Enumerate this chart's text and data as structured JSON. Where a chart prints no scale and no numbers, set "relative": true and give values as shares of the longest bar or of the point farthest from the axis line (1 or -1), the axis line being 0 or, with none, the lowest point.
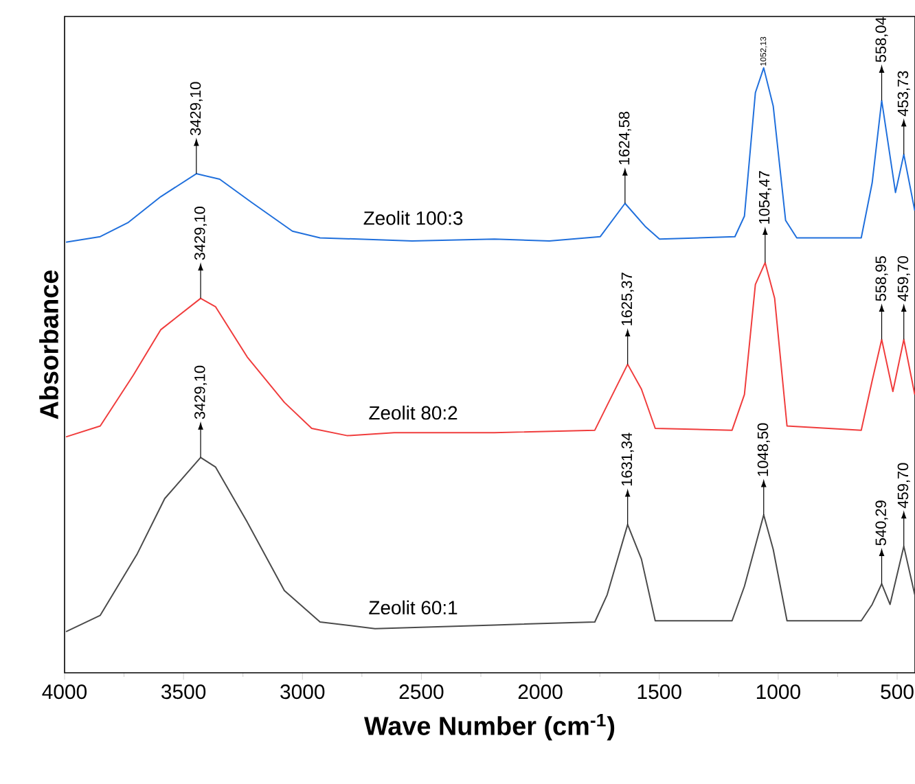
{
  "chart_data": {
    "type": "line",
    "relative": true,
    "xlabel": "Wave Number (cm$^{-1}$)",
    "ylabel": "Absorbance",
    "xlim": [
      4000,
      425
    ],
    "xticks": [
      4000,
      {
        "value": 3750,
        "label": null
      },
      3500,
      {
        "value": 3250,
        "label": null
      },
      3000,
      {
        "value": 2750,
        "label": null
      },
      2500,
      {
        "value": 2250,
        "label": null
      },
      2000,
      {
        "value": 1750,
        "label": null
      },
      1500,
      {
        "value": 1250,
        "label": null
      },
      1000,
      {
        "value": 750,
        "label": null
      },
      500
    ],
    "series": [
      {
        "name": "Zeolit 100:3",
        "color": "#1f6fdc",
        "x": [
          3994,
          3850,
          3734,
          3596,
          3446,
          3348,
          3215,
          3042,
          2926,
          2539,
          2193,
          1962,
          1748,
          1644,
          1557,
          1499,
          1182,
          1142,
          1096,
          1061,
          1021,
          969,
          922,
          651,
          605,
          565,
          507,
          472,
          426
        ],
        "values": [
          0.712,
          0.721,
          0.744,
          0.787,
          0.825,
          0.816,
          0.778,
          0.73,
          0.719,
          0.714,
          0.717,
          0.714,
          0.721,
          0.776,
          0.737,
          0.717,
          0.721,
          0.755,
          0.959,
          1.0,
          0.937,
          0.748,
          0.719,
          0.719,
          0.81,
          0.946,
          0.794,
          0.857,
          0.764
        ]
      },
      {
        "name": "Zeolit 80:2",
        "color": "#f03c3c",
        "x": [
          3994,
          3850,
          3711,
          3596,
          3428,
          3365,
          3232,
          3076,
          2961,
          2811,
          2614,
          2193,
          1771,
          1713,
          1633,
          1575,
          1517,
          1194,
          1142,
          1096,
          1055,
          1015,
          963,
          651,
          605,
          565,
          518,
          472,
          426
        ],
        "values": [
          0.39,
          0.408,
          0.492,
          0.567,
          0.619,
          0.605,
          0.522,
          0.447,
          0.404,
          0.392,
          0.397,
          0.397,
          0.401,
          0.447,
          0.51,
          0.469,
          0.404,
          0.401,
          0.46,
          0.642,
          0.678,
          0.619,
          0.408,
          0.401,
          0.483,
          0.551,
          0.465,
          0.551,
          0.46
        ]
      },
      {
        "name": "Zeolit 60:1",
        "color": "#4a4a4a",
        "x": [
          3994,
          3850,
          3694,
          3579,
          3428,
          3365,
          3232,
          3076,
          2926,
          2695,
          2193,
          1771,
          1719,
          1633,
          1575,
          1517,
          1194,
          1142,
          1061,
          1021,
          963,
          651,
          605,
          565,
          530,
          472,
          426
        ],
        "values": [
          0.068,
          0.095,
          0.197,
          0.288,
          0.356,
          0.34,
          0.249,
          0.136,
          0.084,
          0.073,
          0.079,
          0.084,
          0.129,
          0.245,
          0.188,
          0.086,
          0.086,
          0.143,
          0.261,
          0.204,
          0.086,
          0.086,
          0.113,
          0.147,
          0.113,
          0.209,
          0.129
        ]
      }
    ],
    "annotations": [
      {
        "text": "3429,10",
        "x": 3446,
        "y": 0.825
      },
      {
        "text": "1624,58",
        "x": 1644,
        "y": 0.776
      },
      {
        "text": "1052,13",
        "x": 1061,
        "y": 1.0
      },
      {
        "text": "558,04",
        "x": 565,
        "y": 0.946
      },
      {
        "text": "453,73",
        "x": 472,
        "y": 0.857
      },
      {
        "text": "3429,10",
        "x": 3428,
        "y": 0.619
      },
      {
        "text": "1625,37",
        "x": 1633,
        "y": 0.51
      },
      {
        "text": "1054,47",
        "x": 1055,
        "y": 0.678
      },
      {
        "text": "558,95",
        "x": 565,
        "y": 0.551
      },
      {
        "text": "459,70",
        "x": 472,
        "y": 0.551
      },
      {
        "text": "3429,10",
        "x": 3428,
        "y": 0.356
      },
      {
        "text": "1631,34",
        "x": 1633,
        "y": 0.245
      },
      {
        "text": "1048,50",
        "x": 1061,
        "y": 0.261
      },
      {
        "text": "540,29",
        "x": 565,
        "y": 0.147
      },
      {
        "text": "459,70",
        "x": 472,
        "y": 0.209
      }
    ]
  }
}
